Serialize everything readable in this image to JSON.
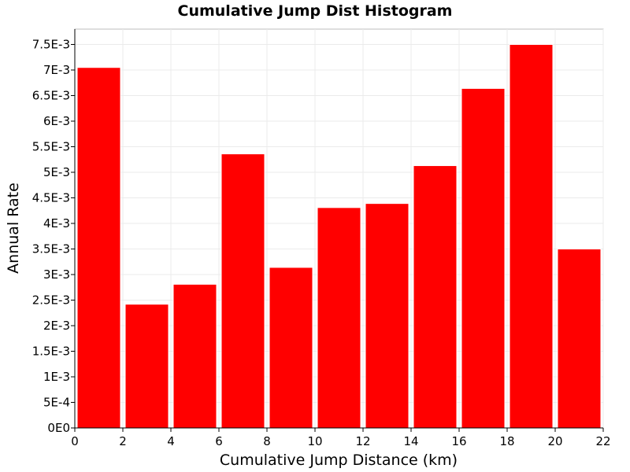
{
  "chart_data": {
    "type": "bar",
    "title": "Cumulative Jump Dist Histogram",
    "xlabel": "Cumulative Jump Distance (km)",
    "ylabel": "Annual Rate",
    "xlim": [
      0,
      22
    ],
    "ylim": [
      0,
      0.0078
    ],
    "bin_width": 2,
    "x": [
      1,
      3,
      5,
      7,
      9,
      11,
      13,
      15,
      17,
      19,
      21
    ],
    "values": [
      0.00705,
      0.00242,
      0.00281,
      0.00536,
      0.00314,
      0.00431,
      0.00439,
      0.00513,
      0.00664,
      0.0075,
      0.0035
    ],
    "xticks": [
      0,
      2,
      4,
      6,
      8,
      10,
      12,
      14,
      16,
      18,
      20,
      22
    ],
    "yticks": [
      0,
      0.0005,
      0.001,
      0.0015,
      0.002,
      0.0025,
      0.003,
      0.0035,
      0.004,
      0.0045,
      0.005,
      0.0055,
      0.006,
      0.0065,
      0.007,
      0.0075
    ],
    "ytick_labels": [
      "0E0",
      "5E-4",
      "1E-3",
      "1.5E-3",
      "2E-3",
      "2.5E-3",
      "3E-3",
      "3.5E-3",
      "4E-3",
      "4.5E-3",
      "5E-3",
      "5.5E-3",
      "6E-3",
      "6.5E-3",
      "7E-3",
      "7.5E-3"
    ],
    "grid": true,
    "legend": "none",
    "bar_color": "#ff0000",
    "grid_color": "#ebebeb"
  }
}
